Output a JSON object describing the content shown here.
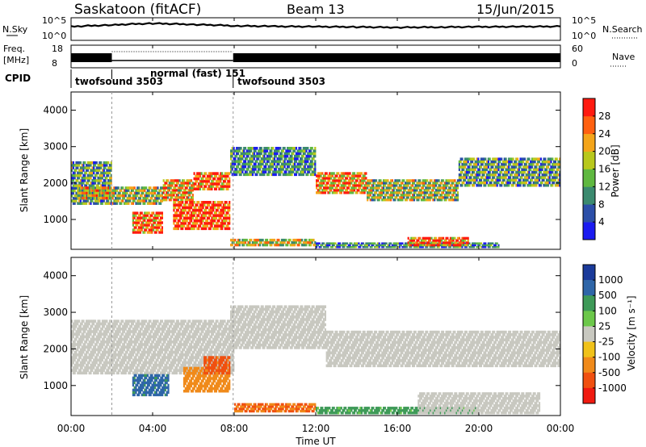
{
  "header": {
    "station": "Saskatoon (fitACF)",
    "beam": "Beam 13",
    "date": "15/Jun/2015"
  },
  "top_panel": {
    "left_label": "N.Sky",
    "left_ticks": [
      "10^5",
      "10^0"
    ],
    "right_ticks": [
      "10^5",
      "10^0"
    ],
    "right_label": "N.Search"
  },
  "freq_panel": {
    "left_label_1": "Freq.",
    "left_label_2": "[MHz]",
    "left_ticks": [
      "18",
      "8"
    ],
    "right_ticks": [
      "60",
      "0"
    ],
    "right_label": "Nave"
  },
  "cpid_panel": {
    "label": "CPID",
    "segments": [
      {
        "name": "twofsound 3503",
        "start_hour": 0,
        "end_hour": 2.0
      },
      {
        "name": "normal (fast) 151",
        "start_hour": 2.0,
        "end_hour": 7.95
      },
      {
        "name": "twofsound 3503",
        "start_hour": 7.95,
        "end_hour": 24
      }
    ]
  },
  "axes": {
    "xlabel": "Time UT",
    "x_ticks": [
      "00:00",
      "04:00",
      "08:00",
      "12:00",
      "16:00",
      "20:00",
      "00:00"
    ],
    "ylabel": "Slant Range [km]",
    "y_ticks": [
      "1000",
      "2000",
      "3000",
      "4000"
    ]
  },
  "power_colorbar": {
    "label": "Power [dB]",
    "ticks": [
      "4",
      "8",
      "12",
      "16",
      "20",
      "24",
      "28"
    ],
    "colors": [
      "#1b1bf0",
      "#2c4fa8",
      "#3b8a6f",
      "#5fb840",
      "#b8c81c",
      "#f4a51a",
      "#ff6010",
      "#ff1a10"
    ]
  },
  "velocity_colorbar": {
    "label": "Velocity [m s⁻¹]",
    "ticks": [
      "1000",
      "500",
      "100",
      "25",
      "-25",
      "-100",
      "-500",
      "-1000"
    ],
    "colors": [
      "#1a3a9a",
      "#2f66a8",
      "#3e9a58",
      "#6cc84a",
      "#c8c8c0",
      "#f0c21a",
      "#f08a1a",
      "#f05010",
      "#f01a10"
    ]
  },
  "chart_data": [
    {
      "type": "line",
      "title": "N.Sky / N.Search",
      "x_unit": "hours UT",
      "series": [
        {
          "name": "N.Sky",
          "x": [
            0,
            2,
            4,
            6,
            8,
            10,
            12,
            14,
            16,
            18,
            20,
            22,
            24
          ],
          "y": [
            1500,
            4000,
            12000,
            6000,
            2500,
            1800,
            1500,
            1200,
            900,
            1100,
            1300,
            1500,
            1700
          ]
        },
        {
          "name": "N.Search",
          "x": [
            0,
            24
          ],
          "y": [
            0,
            0
          ]
        }
      ],
      "ylim": [
        1,
        100000
      ],
      "yscale": "log"
    },
    {
      "type": "line",
      "title": "Freq / Nave",
      "series": [
        {
          "name": "Freq",
          "x": [
            0,
            2,
            8,
            24
          ],
          "y": [
            10.5,
            10.5,
            10.5,
            10.5
          ]
        },
        {
          "name": "Nave",
          "x": [
            0,
            2,
            2,
            8,
            8,
            24
          ],
          "y": [
            20,
            20,
            33,
            33,
            20,
            20
          ]
        }
      ],
      "ylim": [
        8,
        18
      ]
    },
    {
      "type": "heatmap",
      "title": "Power [dB]",
      "xlim": [
        0,
        24
      ],
      "ylim": [
        180,
        4500
      ],
      "cells": [
        {
          "t0": 0.0,
          "t1": 2.0,
          "r0": 1400,
          "r1": 2600,
          "value": 10
        },
        {
          "t0": 0.3,
          "t1": 2.0,
          "r0": 1550,
          "r1": 1900,
          "value": 18
        },
        {
          "t0": 2.0,
          "t1": 4.5,
          "r0": 1400,
          "r1": 1900,
          "value": 14
        },
        {
          "t0": 4.5,
          "t1": 6.0,
          "r0": 1500,
          "r1": 2100,
          "value": 20
        },
        {
          "t0": 6.0,
          "t1": 7.8,
          "r0": 1800,
          "r1": 2300,
          "value": 24
        },
        {
          "t0": 5.0,
          "t1": 7.8,
          "r0": 700,
          "r1": 1500,
          "value": 28
        },
        {
          "t0": 3.0,
          "t1": 4.5,
          "r0": 600,
          "r1": 1200,
          "value": 24
        },
        {
          "t0": 7.8,
          "t1": 12.0,
          "r0": 2200,
          "r1": 3000,
          "value": 8
        },
        {
          "t0": 12.0,
          "t1": 14.5,
          "r0": 1700,
          "r1": 2300,
          "value": 22
        },
        {
          "t0": 14.5,
          "t1": 19.0,
          "r0": 1500,
          "r1": 2100,
          "value": 14
        },
        {
          "t0": 19.0,
          "t1": 24.0,
          "r0": 1900,
          "r1": 2700,
          "value": 10
        },
        {
          "t0": 7.8,
          "t1": 12.0,
          "r0": 250,
          "r1": 450,
          "value": 16
        },
        {
          "t0": 12.0,
          "t1": 21.0,
          "r0": 200,
          "r1": 350,
          "value": 8
        },
        {
          "t0": 16.5,
          "t1": 19.5,
          "r0": 250,
          "r1": 500,
          "value": 26
        }
      ]
    },
    {
      "type": "heatmap",
      "title": "Velocity [m s⁻¹]",
      "xlim": [
        0,
        24
      ],
      "ylim": [
        180,
        4500
      ],
      "cells": [
        {
          "t0": 0.0,
          "t1": 8.0,
          "r0": 1300,
          "r1": 2800,
          "value": 0
        },
        {
          "t0": 3.0,
          "t1": 4.8,
          "r0": 700,
          "r1": 1300,
          "value": 400
        },
        {
          "t0": 5.5,
          "t1": 7.8,
          "r0": 800,
          "r1": 1500,
          "value": -200
        },
        {
          "t0": 6.5,
          "t1": 7.8,
          "r0": 1300,
          "r1": 1800,
          "value": -400
        },
        {
          "t0": 7.8,
          "t1": 12.5,
          "r0": 2000,
          "r1": 3200,
          "value": 0
        },
        {
          "t0": 12.5,
          "t1": 24.0,
          "r0": 1500,
          "r1": 2500,
          "value": 0
        },
        {
          "t0": 8.0,
          "t1": 12.0,
          "r0": 250,
          "r1": 500,
          "value": -300
        },
        {
          "t0": 12.0,
          "t1": 20.0,
          "r0": 200,
          "r1": 400,
          "value": 80
        },
        {
          "t0": 17.0,
          "t1": 23.0,
          "r0": 200,
          "r1": 800,
          "value": 0
        }
      ]
    }
  ]
}
